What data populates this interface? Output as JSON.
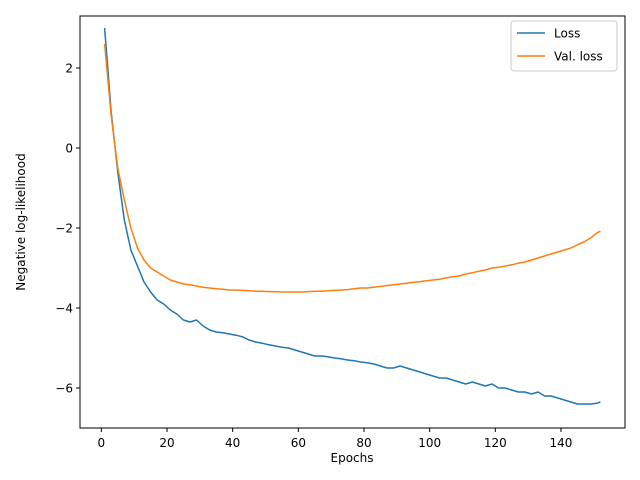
{
  "chart_data": {
    "type": "line",
    "title": "",
    "xlabel": "Epochs",
    "ylabel": "Negative log-likelihood",
    "xlim": [
      -6.5,
      159.5
    ],
    "ylim": [
      -7.0,
      3.3
    ],
    "xticks": [
      0,
      20,
      40,
      60,
      80,
      100,
      120,
      140
    ],
    "yticks": [
      2,
      0,
      -2,
      -4,
      -6
    ],
    "xtick_labels": [
      "0",
      "20",
      "40",
      "60",
      "80",
      "100",
      "120",
      "140"
    ],
    "ytick_labels": [
      "2",
      "0",
      "−2",
      "−4",
      "−6"
    ],
    "grid": false,
    "legend_position": "top-right",
    "series": [
      {
        "name": "Loss",
        "color": "#1f77b4",
        "x": [
          1,
          3,
          5,
          7,
          9,
          11,
          13,
          15,
          17,
          19,
          21,
          23,
          25,
          27,
          29,
          31,
          33,
          35,
          37,
          39,
          41,
          43,
          45,
          47,
          49,
          51,
          53,
          55,
          57,
          59,
          61,
          63,
          65,
          67,
          69,
          71,
          73,
          75,
          77,
          79,
          81,
          83,
          85,
          87,
          89,
          91,
          93,
          95,
          97,
          99,
          101,
          103,
          105,
          107,
          109,
          111,
          113,
          115,
          117,
          119,
          121,
          123,
          125,
          127,
          129,
          131,
          133,
          135,
          137,
          139,
          141,
          143,
          145,
          147,
          149,
          151,
          152
        ],
        "values": [
          3.0,
          0.9,
          -0.6,
          -1.8,
          -2.55,
          -2.95,
          -3.35,
          -3.6,
          -3.8,
          -3.9,
          -4.05,
          -4.15,
          -4.3,
          -4.35,
          -4.3,
          -4.45,
          -4.55,
          -4.6,
          -4.62,
          -4.65,
          -4.68,
          -4.72,
          -4.8,
          -4.85,
          -4.88,
          -4.92,
          -4.95,
          -4.98,
          -5.0,
          -5.05,
          -5.1,
          -5.15,
          -5.2,
          -5.2,
          -5.22,
          -5.25,
          -5.27,
          -5.3,
          -5.32,
          -5.35,
          -5.37,
          -5.4,
          -5.45,
          -5.5,
          -5.5,
          -5.45,
          -5.5,
          -5.55,
          -5.6,
          -5.65,
          -5.7,
          -5.75,
          -5.75,
          -5.8,
          -5.85,
          -5.9,
          -5.85,
          -5.9,
          -5.95,
          -5.9,
          -6.0,
          -6.0,
          -6.05,
          -6.1,
          -6.1,
          -6.15,
          -6.1,
          -6.2,
          -6.2,
          -6.25,
          -6.3,
          -6.35,
          -6.4,
          -6.4,
          -6.4,
          -6.38,
          -6.35
        ]
      },
      {
        "name": "Val. loss",
        "color": "#ff7f0e",
        "x": [
          1,
          3,
          5,
          7,
          9,
          11,
          13,
          15,
          17,
          19,
          21,
          23,
          25,
          27,
          29,
          31,
          33,
          35,
          37,
          39,
          41,
          43,
          45,
          47,
          49,
          51,
          53,
          55,
          57,
          59,
          61,
          63,
          65,
          67,
          69,
          71,
          73,
          75,
          77,
          79,
          81,
          83,
          85,
          87,
          89,
          91,
          93,
          95,
          97,
          99,
          101,
          103,
          105,
          107,
          109,
          111,
          113,
          115,
          117,
          119,
          121,
          123,
          125,
          127,
          129,
          131,
          133,
          135,
          137,
          139,
          141,
          143,
          145,
          147,
          149,
          151,
          152
        ],
        "values": [
          2.6,
          0.8,
          -0.5,
          -1.3,
          -2.0,
          -2.5,
          -2.8,
          -3.0,
          -3.1,
          -3.2,
          -3.3,
          -3.35,
          -3.4,
          -3.42,
          -3.45,
          -3.48,
          -3.5,
          -3.52,
          -3.53,
          -3.55,
          -3.55,
          -3.56,
          -3.57,
          -3.58,
          -3.58,
          -3.59,
          -3.59,
          -3.6,
          -3.6,
          -3.6,
          -3.6,
          -3.59,
          -3.58,
          -3.58,
          -3.57,
          -3.56,
          -3.55,
          -3.54,
          -3.52,
          -3.5,
          -3.5,
          -3.48,
          -3.46,
          -3.44,
          -3.42,
          -3.4,
          -3.38,
          -3.36,
          -3.34,
          -3.32,
          -3.3,
          -3.28,
          -3.25,
          -3.22,
          -3.2,
          -3.15,
          -3.12,
          -3.08,
          -3.05,
          -3.0,
          -2.98,
          -2.95,
          -2.92,
          -2.88,
          -2.85,
          -2.8,
          -2.75,
          -2.7,
          -2.65,
          -2.6,
          -2.55,
          -2.5,
          -2.42,
          -2.35,
          -2.25,
          -2.12,
          -2.08
        ]
      }
    ]
  }
}
